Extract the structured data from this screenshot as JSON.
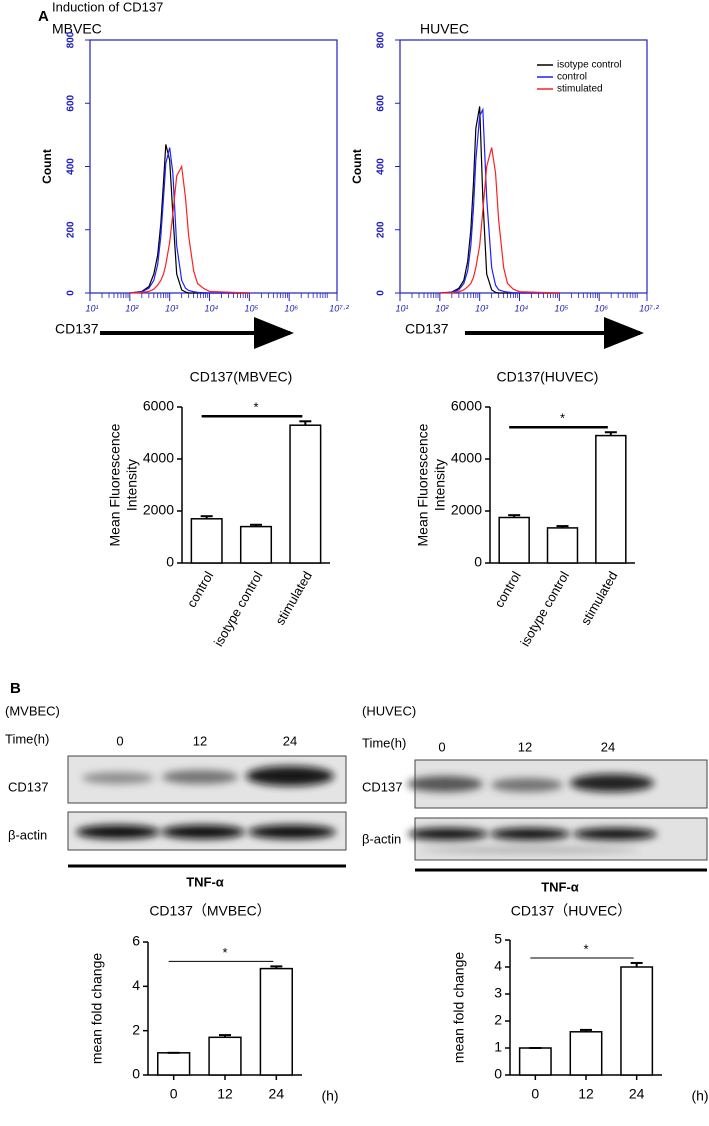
{
  "panel_a": {
    "label": "A",
    "heading": "Induction of CD137"
  },
  "panel_b": {
    "label": "B",
    "blots": [
      {
        "cell": "(MVBEC)",
        "time_label": "Time(h)",
        "times": [
          "0",
          "12",
          "24"
        ],
        "rows": [
          "CD137",
          "β-actin"
        ],
        "treatment": "TNF-α"
      },
      {
        "cell": "(HUVEC)",
        "time_label": "Time(h)",
        "times": [
          "0",
          "12",
          "24"
        ],
        "rows": [
          "CD137",
          "β-actin"
        ],
        "treatment": "TNF-α"
      }
    ]
  },
  "chart_data": [
    {
      "type": "line",
      "title": "MBVEC",
      "ylabel": "Count",
      "xlabel": "CD137",
      "xscale": "log",
      "xlim": [
        10,
        15848932
      ],
      "xticks": [
        {
          "value": 10,
          "label": "10¹"
        },
        {
          "value": 100,
          "label": "10²"
        },
        {
          "value": 1000,
          "label": "10³"
        },
        {
          "value": 10000,
          "label": "10⁴"
        },
        {
          "value": 100000,
          "label": "10⁵"
        },
        {
          "value": 1000000,
          "label": "10⁶"
        },
        {
          "value": 15848932,
          "label": "10⁷·²"
        }
      ],
      "ylim": [
        0,
        800
      ],
      "yticks": [
        0,
        200,
        400,
        600,
        800
      ],
      "frame_color": "#2020c0",
      "x": [
        100,
        200,
        300,
        400,
        500,
        600,
        700,
        800,
        1000,
        1200,
        1500,
        2000,
        2500,
        3000,
        4000,
        5000,
        7000,
        10000,
        100000
      ],
      "series": [
        {
          "color": "#000000",
          "values": [
            0,
            5,
            20,
            60,
            120,
            220,
            350,
            470,
            420,
            250,
            60,
            10,
            3,
            0,
            0,
            0,
            0,
            0,
            0
          ]
        },
        {
          "color": "#1f1fff",
          "values": [
            0,
            4,
            15,
            40,
            90,
            180,
            300,
            410,
            460,
            380,
            150,
            40,
            15,
            8,
            4,
            2,
            1,
            0,
            0
          ]
        },
        {
          "color": "#ff2020",
          "values": [
            0,
            2,
            5,
            12,
            25,
            40,
            60,
            90,
            160,
            250,
            370,
            400,
            300,
            180,
            70,
            30,
            15,
            5,
            0
          ]
        }
      ]
    },
    {
      "type": "line",
      "title": "HUVEC",
      "ylabel": "Count",
      "xlabel": "CD137",
      "xscale": "log",
      "xlim": [
        10,
        15848932
      ],
      "xticks": [
        {
          "value": 10,
          "label": "10¹"
        },
        {
          "value": 100,
          "label": "10²"
        },
        {
          "value": 1000,
          "label": "10³"
        },
        {
          "value": 10000,
          "label": "10⁴"
        },
        {
          "value": 100000,
          "label": "10⁵"
        },
        {
          "value": 1000000,
          "label": "10⁶"
        },
        {
          "value": 15848932,
          "label": "10⁷·²"
        }
      ],
      "ylim": [
        0,
        800
      ],
      "yticks": [
        0,
        200,
        400,
        600,
        800
      ],
      "frame_color": "#2020c0",
      "legend": "upper right",
      "x": [
        100,
        200,
        300,
        400,
        500,
        600,
        700,
        800,
        1000,
        1200,
        1500,
        2000,
        2500,
        3000,
        4000,
        5000,
        7000,
        10000,
        100000
      ],
      "series": [
        {
          "name": "isotype control",
          "color": "#000000",
          "values": [
            0,
            3,
            15,
            40,
            100,
            200,
            350,
            520,
            590,
            300,
            60,
            10,
            2,
            0,
            0,
            0,
            0,
            0,
            0
          ]
        },
        {
          "name": "control",
          "color": "#1f1fff",
          "values": [
            0,
            2,
            10,
            30,
            70,
            150,
            270,
            420,
            560,
            580,
            300,
            80,
            25,
            10,
            5,
            3,
            1,
            0,
            0
          ]
        },
        {
          "name": "stimulated",
          "color": "#ff2020",
          "values": [
            0,
            1,
            4,
            10,
            20,
            30,
            50,
            80,
            150,
            260,
            400,
            460,
            380,
            230,
            80,
            30,
            12,
            4,
            0
          ]
        }
      ]
    },
    {
      "type": "bar",
      "title": "CD137(MBVEC)",
      "ylabel": [
        "Mean Fluorescence",
        "Intensity"
      ],
      "categories": [
        "control",
        "isotype control",
        "stimulated"
      ],
      "values": [
        1700,
        1400,
        5300
      ],
      "errors": [
        100,
        70,
        150
      ],
      "color": "#ffffff",
      "ylim": [
        0,
        6000
      ],
      "yticks": [
        0,
        2000,
        4000,
        6000
      ],
      "annotation": "*"
    },
    {
      "type": "bar",
      "title": "CD137(HUVEC)",
      "ylabel": [
        "Mean Fluorescence",
        "Intensity"
      ],
      "categories": [
        "control",
        "isotype control",
        "stimulated"
      ],
      "values": [
        1750,
        1350,
        4900
      ],
      "errors": [
        90,
        70,
        130
      ],
      "color": "#ffffff",
      "ylim": [
        0,
        6000
      ],
      "yticks": [
        0,
        2000,
        4000,
        6000
      ],
      "annotation": "*"
    },
    {
      "type": "bar",
      "title": "CD137（MVBEC）",
      "ylabel": [
        "mean fold change"
      ],
      "xlabel": "(h)",
      "categories": [
        "0",
        "12",
        "24"
      ],
      "values": [
        1,
        1.7,
        4.8
      ],
      "errors": [
        0,
        0.1,
        0.1
      ],
      "color": "#ffffff",
      "ylim": [
        0,
        6
      ],
      "yticks": [
        0,
        2,
        4,
        6
      ],
      "annotation": "*"
    },
    {
      "type": "bar",
      "title": "CD137（HUVEC）",
      "ylabel": [
        "mean fold change"
      ],
      "xlabel": "(h)",
      "categories": [
        "0",
        "12",
        "24"
      ],
      "values": [
        1,
        1.6,
        4.0
      ],
      "errors": [
        0,
        0.07,
        0.15
      ],
      "color": "#ffffff",
      "ylim": [
        0,
        5
      ],
      "yticks": [
        0,
        1,
        2,
        3,
        4,
        5
      ],
      "annotation": "*"
    }
  ]
}
